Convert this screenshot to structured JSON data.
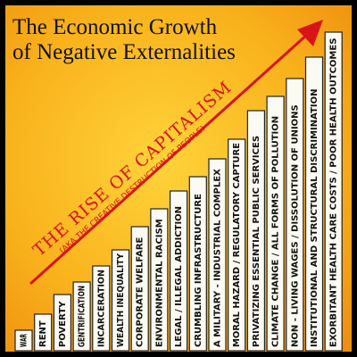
{
  "title": {
    "line1": "The Economic Growth",
    "line2": "of Negative Externalities"
  },
  "arrow": {
    "label": "THE RISE OF CAPITALISM",
    "sublabel": "(AKA THE CREATIVE DESTRUCTION OF PEOPLE)"
  },
  "bars": [
    {
      "label": "WAR"
    },
    {
      "label": "RENT"
    },
    {
      "label": "POVERTY"
    },
    {
      "label": "GENTRIFICATION"
    },
    {
      "label": "INCARCERATION"
    },
    {
      "label": "WEALTH INEQUALITY"
    },
    {
      "label": "CORPORATE WELFARE"
    },
    {
      "label": "ENVIRONMENTAL RACISM"
    },
    {
      "label": "LEGAL / ILLEGAL ADDICTION"
    },
    {
      "label": "CRUMBLING INFRASTRUCTURE"
    },
    {
      "label": "A MILITARY - INDUSTRIAL COMPLEX"
    },
    {
      "label": "MORAL HAZARD / REGULATORY CAPTURE"
    },
    {
      "label": "PRIVATIZING ESSENTIAL PUBLIC SERVICES"
    },
    {
      "label": "CLIMATE CHANGE / ALL FORMS OF POLLUTION"
    },
    {
      "label": "NON - LIVING WAGES / DISSOLUTION OF UNIONS"
    },
    {
      "label": "INSTITUTIONAL AND STRUCTURAL DISCRIMINATION"
    },
    {
      "label": "EXORBITANT HEALTH CARE COSTS / POOR HEALTH OUTCOMES"
    }
  ]
}
